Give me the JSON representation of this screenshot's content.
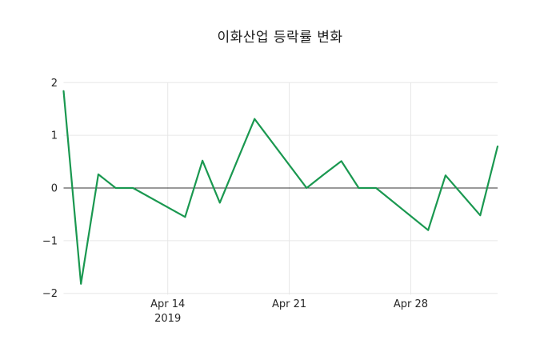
{
  "title": "이화산업 등락률 변화",
  "colors": {
    "line": "#1a9850",
    "grid": "#e7e7e7",
    "zero_line": "#333333",
    "text": "#262626",
    "background": "#ffffff"
  },
  "chart_data": {
    "type": "line",
    "title": "이화산업 등락률 변화",
    "xlabel": "",
    "ylabel": "",
    "grid": true,
    "legend": "none",
    "zero_line": true,
    "ylim": [
      -2,
      2
    ],
    "xlim_days": [
      0,
      25
    ],
    "x_dates": [
      "2019-04-08",
      "2019-04-09",
      "2019-04-10",
      "2019-04-11",
      "2019-04-12",
      "2019-04-15",
      "2019-04-16",
      "2019-04-17",
      "2019-04-18",
      "2019-04-19",
      "2019-04-22",
      "2019-04-23",
      "2019-04-24",
      "2019-04-25",
      "2019-04-26",
      "2019-04-29",
      "2019-04-30",
      "2019-05-02",
      "2019-05-03"
    ],
    "x_day_offsets": [
      0,
      1,
      2,
      3,
      4,
      7,
      8,
      9,
      10,
      11,
      14,
      15,
      16,
      17,
      18,
      21,
      22,
      24,
      25
    ],
    "values": [
      1.84,
      -1.82,
      0.26,
      0.0,
      0.0,
      -0.55,
      0.52,
      -0.28,
      0.52,
      1.31,
      0.0,
      0.26,
      0.51,
      0.0,
      0.0,
      -0.8,
      0.24,
      -0.52,
      0.79
    ],
    "x_ticks": [
      {
        "day": 6,
        "label": "Apr 14",
        "sub_label": "2019"
      },
      {
        "day": 13,
        "label": "Apr 21",
        "sub_label": ""
      },
      {
        "day": 20,
        "label": "Apr 28",
        "sub_label": ""
      }
    ],
    "y_ticks": [
      {
        "value": 2,
        "label": "2"
      },
      {
        "value": 1,
        "label": "1"
      },
      {
        "value": 0,
        "label": "0"
      },
      {
        "value": -1,
        "label": "−1"
      },
      {
        "value": -2,
        "label": "−2"
      }
    ]
  }
}
